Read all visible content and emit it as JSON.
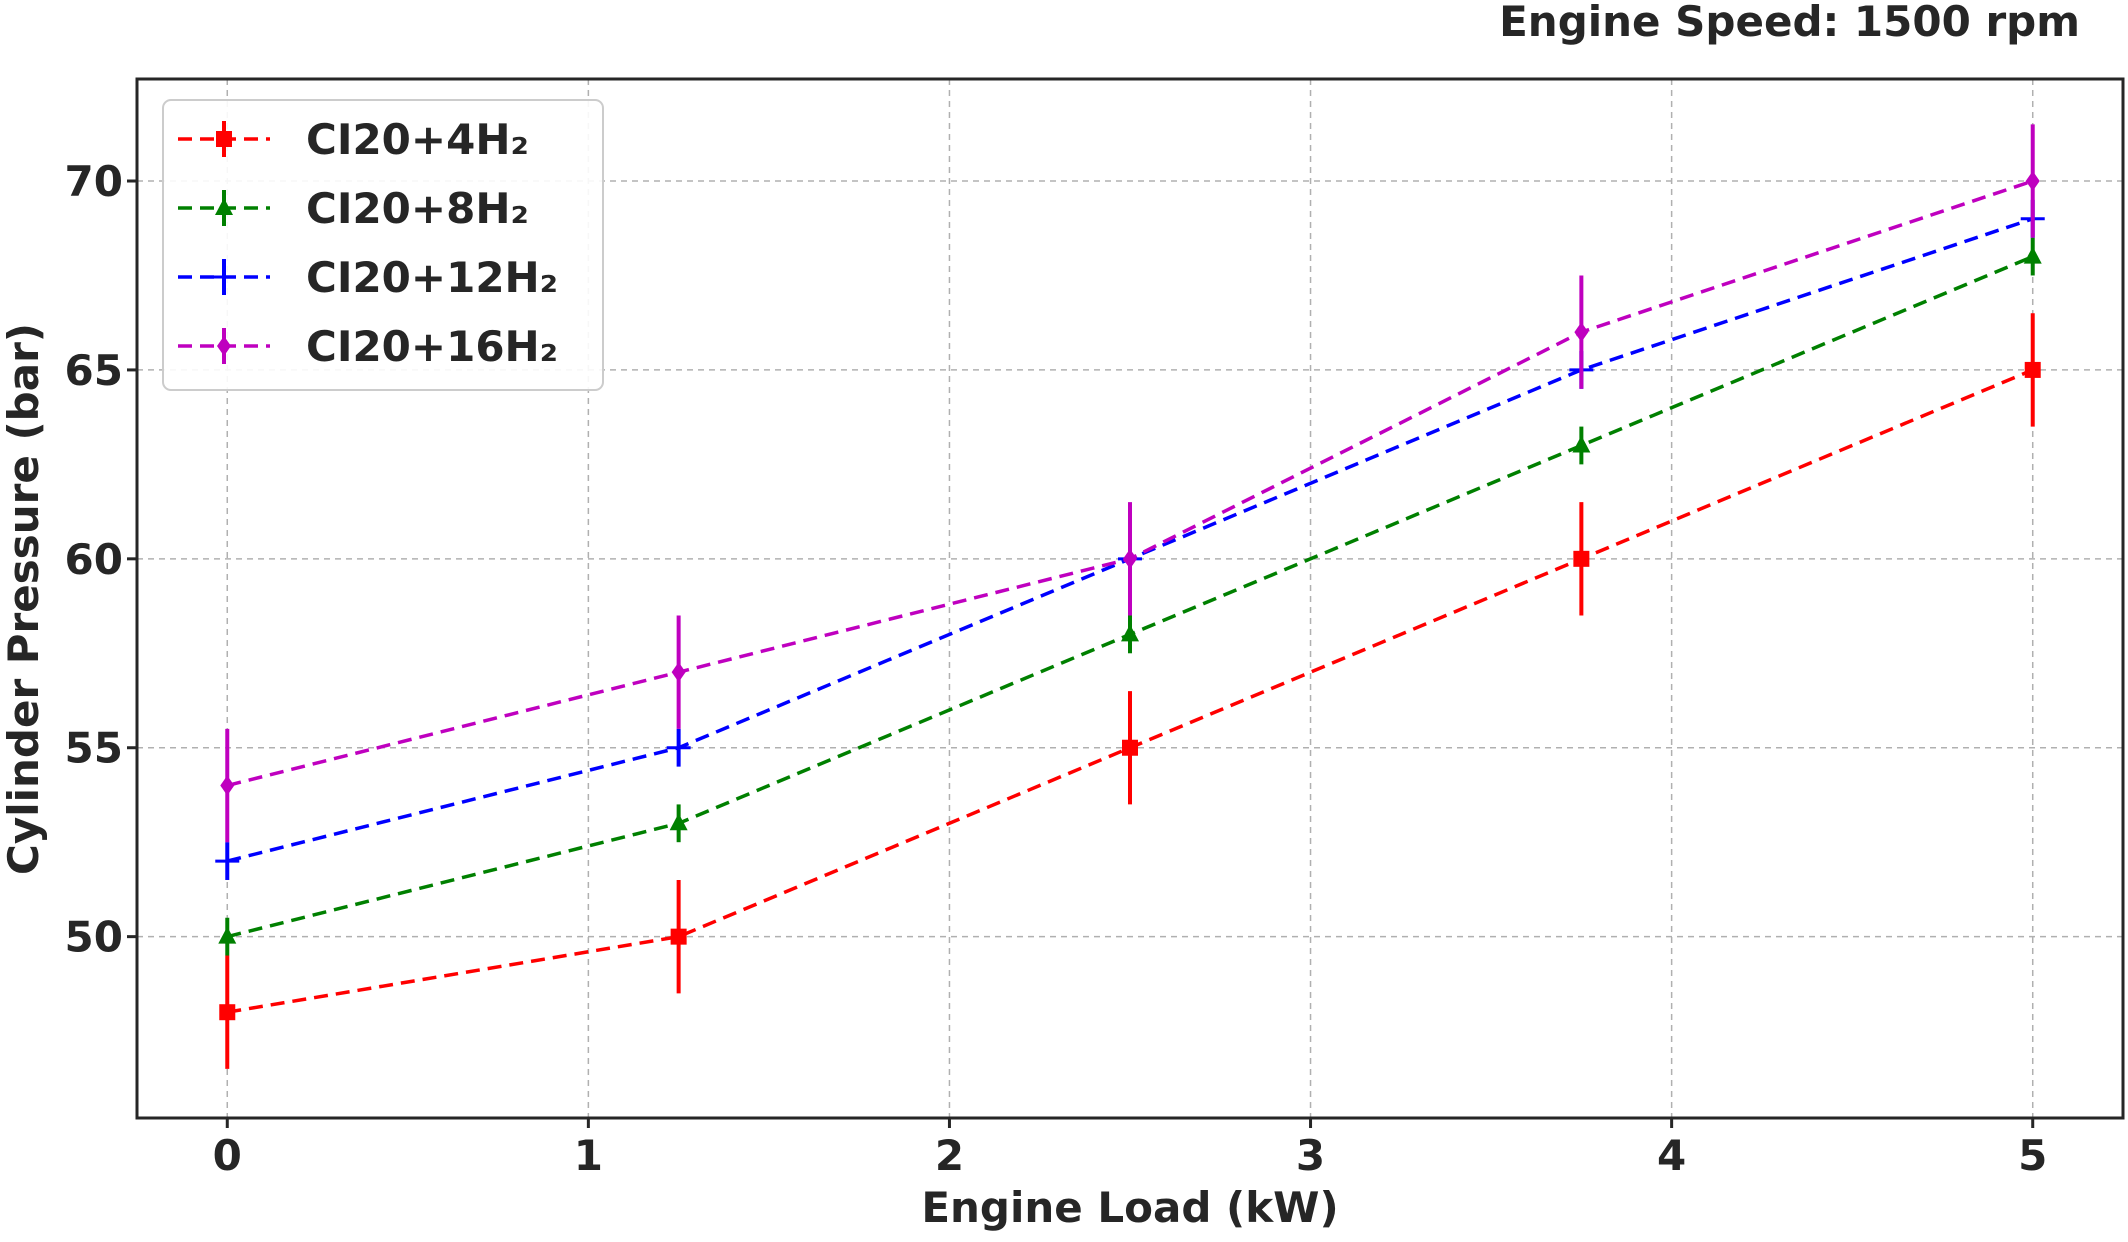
{
  "chart_data": {
    "type": "line",
    "annotation": "Engine Speed: 1500 rpm",
    "xlabel": "Engine Load (kW)",
    "ylabel": "Cylinder Pressure (bar)",
    "x": [
      0,
      1.25,
      2.5,
      3.75,
      5
    ],
    "xlim": [
      -0.25,
      5.25
    ],
    "ylim": [
      45.2,
      72.7
    ],
    "xticks": [
      0,
      1,
      2,
      3,
      4,
      5
    ],
    "yticks": [
      50,
      55,
      60,
      65,
      70
    ],
    "grid": true,
    "legend_position": "upper-left",
    "series": [
      {
        "name": "CI20+4H₂",
        "color": "#ff0000",
        "marker": "square",
        "values": [
          48,
          50,
          55,
          60,
          65
        ],
        "error": [
          1.5,
          1.5,
          1.5,
          1.5,
          1.5
        ]
      },
      {
        "name": "CI20+8H₂",
        "color": "#008000",
        "marker": "triangle",
        "values": [
          50,
          53,
          58,
          63,
          68
        ],
        "error": [
          0.5,
          0.5,
          0.5,
          0.5,
          0.5
        ]
      },
      {
        "name": "CI20+12H₂",
        "color": "#0000ff",
        "marker": "plus",
        "values": [
          52,
          55,
          60,
          65,
          69
        ],
        "error": [
          0.5,
          0.5,
          0.5,
          0.5,
          0.5
        ]
      },
      {
        "name": "CI20+16H₂",
        "color": "#bf00bf",
        "marker": "diamond",
        "values": [
          54,
          57,
          60,
          66,
          70
        ],
        "error": [
          1.5,
          1.5,
          1.5,
          1.5,
          1.5
        ]
      }
    ]
  }
}
